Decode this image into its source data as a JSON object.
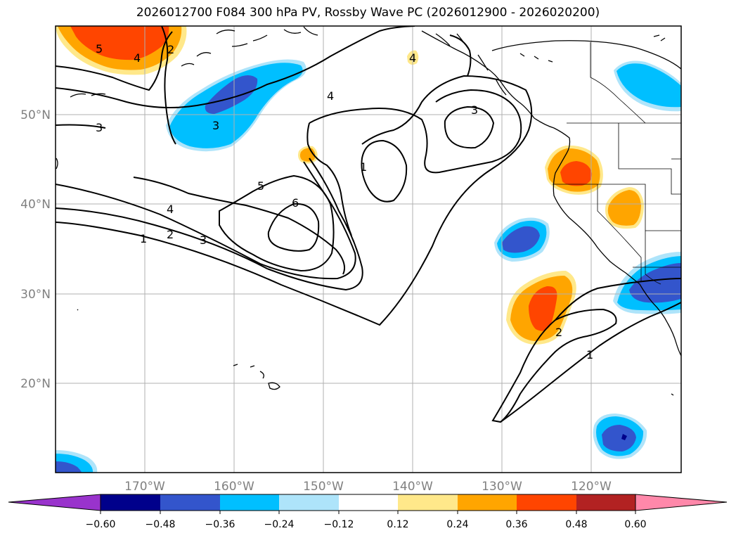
{
  "title": "2026012700 F084 300 hPa PV, Rossby Wave PC (2026012900 - 2026020200)",
  "latitude_labels": [
    "50°N",
    "40°N",
    "30°N",
    "20°N"
  ],
  "longitude_labels": [
    "170°W",
    "160°W",
    "150°W",
    "140°W",
    "130°W",
    "120°W"
  ],
  "contour_labels": [
    "5",
    "4",
    "2",
    "3",
    "4",
    "3",
    "1",
    "3",
    "5",
    "6",
    "4",
    "2",
    "3",
    "1",
    "4",
    "2",
    "1"
  ],
  "colorbar": {
    "ticks": [
      "−0.60",
      "−0.48",
      "−0.36",
      "−0.24",
      "−0.12",
      "0.12",
      "0.24",
      "0.36",
      "0.48",
      "0.60"
    ],
    "colors": [
      "#9933cc",
      "#00008b",
      "#3355cc",
      "#00bfff",
      "#aee4fa",
      "#ffffff",
      "#ffe88a",
      "#ffa500",
      "#ff4500",
      "#b22222",
      "#ff88aa"
    ]
  },
  "chart_data": {
    "type": "map",
    "title": "2026012700 F084 300 hPa PV, Rossby Wave PC (2026012900 - 2026020200)",
    "extent": {
      "lon_min": -180,
      "lon_max": -110,
      "lat_min": 10,
      "lat_max": 60
    },
    "contour_variable": "300 hPa PV (PVU)",
    "contour_levels": [
      1,
      2,
      3,
      4,
      5,
      6
    ],
    "fill_variable": "Rossby Wave PC",
    "fill_levels": [
      -0.6,
      -0.48,
      -0.36,
      -0.24,
      -0.12,
      0.12,
      0.24,
      0.36,
      0.48,
      0.6
    ],
    "grid": true
  }
}
